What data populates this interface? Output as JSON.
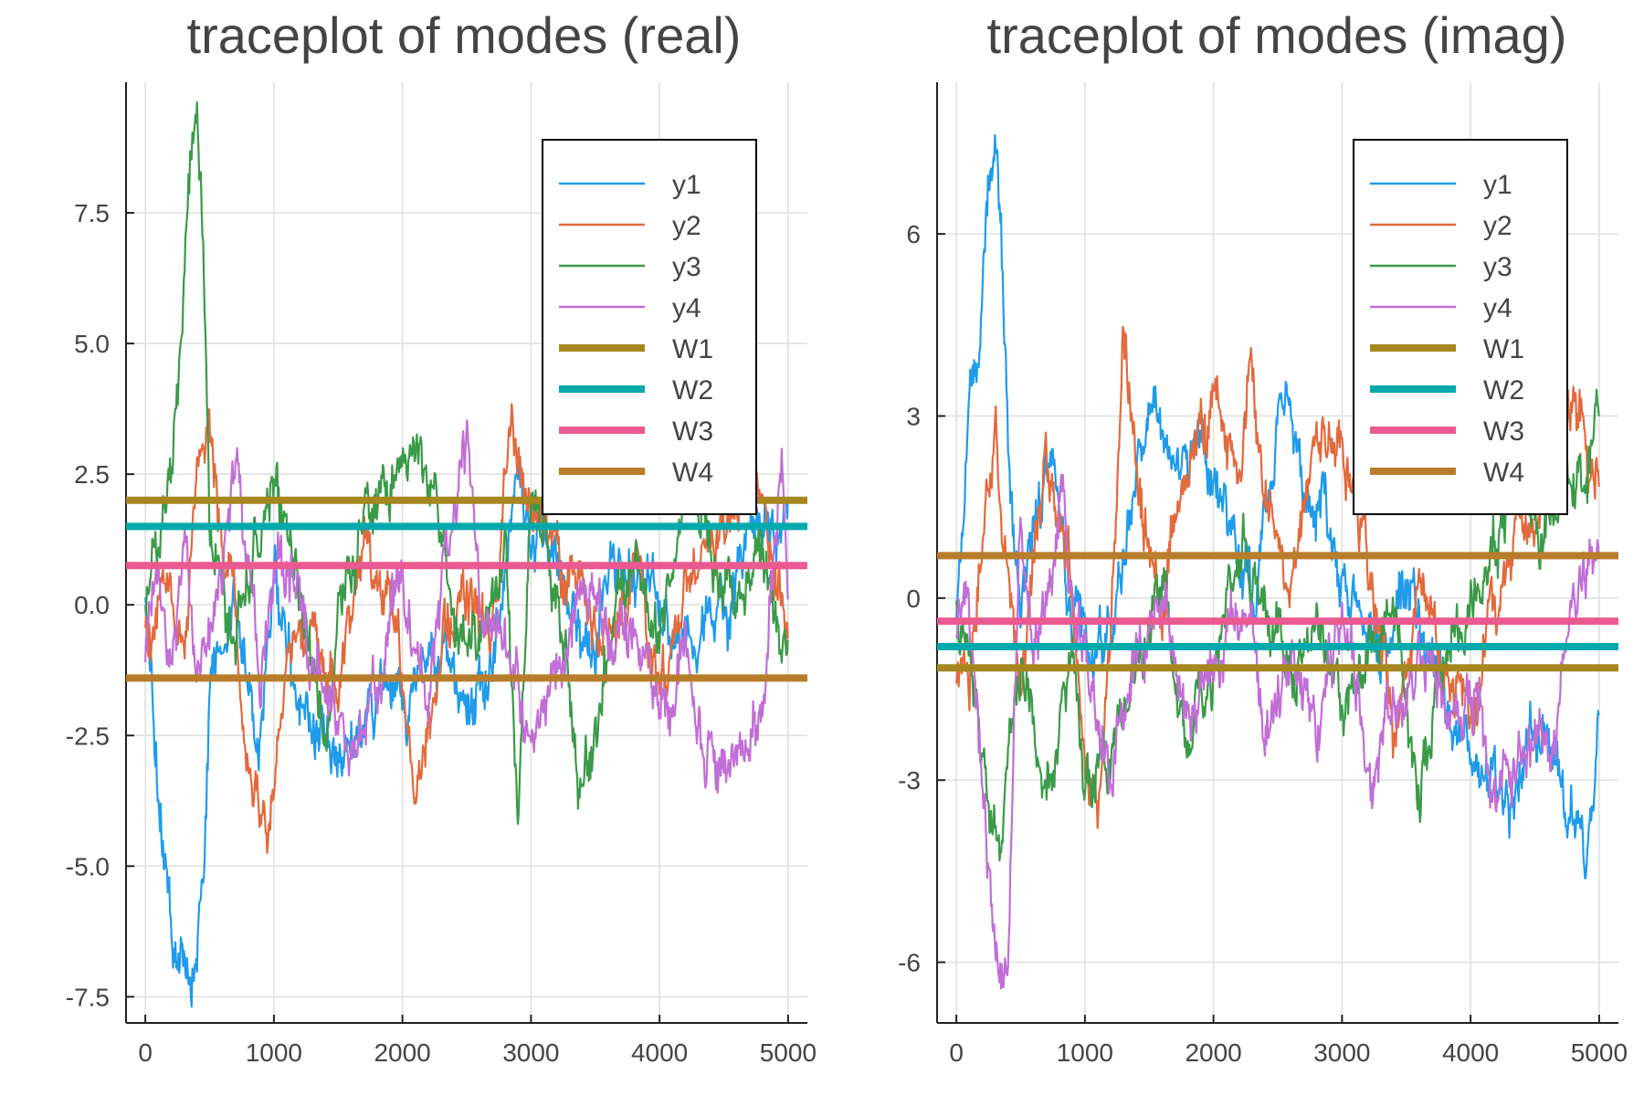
{
  "chart_data": [
    {
      "type": "line",
      "title": "traceplot of modes (real)",
      "xlabel": "",
      "ylabel": "",
      "xlim": [
        -150,
        5150
      ],
      "ylim": [
        -8,
        10
      ],
      "xticks": [
        0,
        1000,
        2000,
        3000,
        4000,
        5000
      ],
      "xtick_labels": [
        "0",
        "1000",
        "2000",
        "3000",
        "4000",
        "5000"
      ],
      "yticks": [
        -7.5,
        -5.0,
        -2.5,
        0.0,
        2.5,
        5.0,
        7.5
      ],
      "ytick_labels": [
        "-7.5",
        "-5.0",
        "-2.5",
        "0.0",
        "2.5",
        "5.0",
        "7.5"
      ],
      "grid": true,
      "legend_position": "top-right",
      "series": [
        {
          "name": "y1",
          "color": "#1f9bea",
          "x": [
            0,
            100,
            200,
            300,
            350,
            400,
            450,
            500,
            700,
            900,
            1000,
            1200,
            1500,
            1700,
            2000,
            2300,
            2500,
            2700,
            2900,
            3100,
            3300,
            3500,
            3700,
            3900,
            4100,
            4300,
            4500,
            4700,
            4900,
            5000
          ],
          "values": [
            0,
            -3.5,
            -6,
            -7,
            -7.3,
            -6.5,
            -5,
            -1.5,
            0,
            -2.5,
            1,
            -2,
            -2.8,
            -2,
            -1.5,
            -1,
            -2,
            -1,
            2,
            1,
            0,
            -1,
            1,
            0,
            -1,
            -0.5,
            0,
            1,
            1.5,
            2
          ]
        },
        {
          "name": "y2",
          "color": "#e26a3c",
          "x": [
            0,
            150,
            300,
            400,
            500,
            600,
            700,
            800,
            900,
            950,
            1100,
            1300,
            1500,
            1700,
            1900,
            2100,
            2300,
            2500,
            2700,
            2850,
            3000,
            3200,
            3400,
            3600,
            3800,
            4000,
            4200,
            4400,
            4600,
            4800,
            5000
          ],
          "values": [
            -0.5,
            0.5,
            -1,
            2,
            3.5,
            1,
            0,
            -2.5,
            -3.8,
            -4.3,
            -1.5,
            0,
            -2,
            1,
            0,
            -3,
            -1,
            0.5,
            -1,
            3.5,
            2,
            1,
            0,
            -1,
            1,
            -1.5,
            0,
            1,
            2,
            2.5,
            -0.5
          ]
        },
        {
          "name": "y3",
          "color": "#3a9a48",
          "x": [
            0,
            100,
            200,
            300,
            350,
            400,
            450,
            500,
            600,
            700,
            800,
            1000,
            1200,
            1400,
            1600,
            1800,
            2000,
            2200,
            2400,
            2600,
            2800,
            2900,
            3000,
            3200,
            3400,
            3600,
            3800,
            4000,
            4200,
            4400,
            4600,
            4800,
            5000
          ],
          "values": [
            0,
            1.5,
            3,
            6,
            8.5,
            9.3,
            7,
            2,
            0,
            -1,
            0.5,
            2,
            0,
            -2,
            1,
            2,
            2.5,
            3,
            0,
            -1,
            1,
            -4.5,
            2,
            0,
            -3.5,
            -1,
            1,
            -1,
            2,
            1,
            0,
            1,
            -1
          ]
        },
        {
          "name": "y4",
          "color": "#c16ed6",
          "x": [
            0,
            100,
            200,
            300,
            400,
            500,
            600,
            700,
            800,
            900,
            1000,
            1200,
            1400,
            1600,
            1800,
            2000,
            2200,
            2400,
            2500,
            2600,
            2800,
            3000,
            3200,
            3400,
            3600,
            3800,
            4000,
            4200,
            4400,
            4600,
            4800,
            4950,
            5000
          ],
          "values": [
            -1,
            0.5,
            -1.5,
            1,
            -1,
            -0.5,
            1,
            3,
            1,
            -2,
            1,
            0,
            -2,
            -3,
            -1.5,
            0.5,
            -2,
            2,
            3,
            0,
            -1,
            -2.5,
            -1,
            0,
            -1,
            0,
            -2,
            -1,
            -3,
            -3,
            -2,
            3,
            0.5
          ]
        },
        {
          "name": "W1",
          "color": "#a6861e",
          "constant": 2.0
        },
        {
          "name": "W2",
          "color": "#00a9ac",
          "constant": 1.5
        },
        {
          "name": "W3",
          "color": "#ea5a91",
          "constant": 0.75
        },
        {
          "name": "W4",
          "color": "#b87d2b",
          "constant": -1.4
        }
      ]
    },
    {
      "type": "line",
      "title": "traceplot of modes (imag)",
      "xlabel": "",
      "ylabel": "",
      "xlim": [
        -150,
        5150
      ],
      "ylim": [
        -7,
        8.5
      ],
      "xticks": [
        0,
        1000,
        2000,
        3000,
        4000,
        5000
      ],
      "xtick_labels": [
        "0",
        "1000",
        "2000",
        "3000",
        "4000",
        "5000"
      ],
      "yticks": [
        -6,
        -3,
        0,
        3,
        6
      ],
      "ytick_labels": [
        "-6",
        "-3",
        "0",
        "3",
        "6"
      ],
      "grid": true,
      "legend_position": "top-right",
      "series": [
        {
          "name": "y1",
          "color": "#1f9bea",
          "x": [
            0,
            100,
            200,
            250,
            300,
            350,
            400,
            450,
            500,
            700,
            900,
            1100,
            1300,
            1500,
            1700,
            1900,
            2100,
            2300,
            2500,
            2600,
            2700,
            2900,
            3100,
            3300,
            3500,
            3700,
            3900,
            4100,
            4300,
            4500,
            4700,
            4900,
            5000
          ],
          "values": [
            0,
            3,
            5,
            6.5,
            7.5,
            6,
            3,
            1,
            0,
            2,
            0,
            -1,
            1,
            3,
            2,
            3,
            1,
            0,
            3,
            3.5,
            2,
            1,
            0,
            -1,
            0,
            -1,
            -2,
            -3,
            -3.5,
            -2,
            -3,
            -4.2,
            -2
          ]
        },
        {
          "name": "y2",
          "color": "#e26a3c",
          "x": [
            0,
            100,
            200,
            300,
            400,
            500,
            600,
            700,
            800,
            900,
            1000,
            1100,
            1200,
            1300,
            1400,
            1600,
            1800,
            2000,
            2200,
            2300,
            2400,
            2600,
            2800,
            3000,
            3200,
            3400,
            3600,
            3800,
            4000,
            4200,
            4400,
            4600,
            4800,
            5000
          ],
          "values": [
            -1,
            -1.5,
            1,
            3,
            0,
            -1.5,
            1,
            2,
            1,
            0,
            -3,
            -4,
            -1,
            4,
            2,
            0,
            2,
            3,
            2,
            4,
            2,
            0,
            3,
            2,
            1,
            -2,
            0,
            -1,
            -2,
            0,
            1,
            2,
            3,
            2
          ]
        },
        {
          "name": "y3",
          "color": "#3a9a48",
          "x": [
            0,
            100,
            200,
            300,
            350,
            400,
            500,
            600,
            700,
            800,
            900,
            1000,
            1100,
            1200,
            1400,
            1600,
            1800,
            2000,
            2200,
            2400,
            2600,
            2800,
            3000,
            3200,
            3400,
            3600,
            3800,
            4000,
            4200,
            4400,
            4600,
            4800,
            5000
          ],
          "values": [
            0,
            -1,
            -3,
            -4,
            -4.5,
            -3,
            -1,
            -2,
            -3,
            -2,
            -1.5,
            -3,
            -2.5,
            -3,
            -1,
            0,
            -2,
            -1,
            1,
            0,
            -1,
            0,
            -2,
            -1,
            0,
            -3,
            -1,
            0,
            1,
            2,
            1,
            2,
            3
          ]
        },
        {
          "name": "y4",
          "color": "#c16ed6",
          "x": [
            0,
            100,
            200,
            300,
            350,
            400,
            450,
            500,
            600,
            700,
            800,
            900,
            1000,
            1200,
            1400,
            1600,
            1800,
            2000,
            2200,
            2400,
            2600,
            2800,
            3000,
            3200,
            3400,
            3600,
            3800,
            4000,
            4200,
            4400,
            4600,
            4800,
            5000
          ],
          "values": [
            -0.5,
            0,
            -3,
            -5.5,
            -6.4,
            -6,
            -2,
            1,
            -1,
            0,
            2,
            0,
            -1,
            -3,
            -1,
            0,
            -2,
            -1,
            0,
            -2,
            -1,
            -2,
            0,
            -3,
            -2,
            -1,
            -2,
            -1,
            -3,
            -2,
            -3,
            0,
            1
          ]
        },
        {
          "name": "W1",
          "color": "#a6861e",
          "constant": -1.15
        },
        {
          "name": "W2",
          "color": "#00a9ac",
          "constant": -0.8
        },
        {
          "name": "W3",
          "color": "#ea5a91",
          "constant": -0.38
        },
        {
          "name": "W4",
          "color": "#b87d2b",
          "constant": 0.7
        }
      ]
    }
  ]
}
